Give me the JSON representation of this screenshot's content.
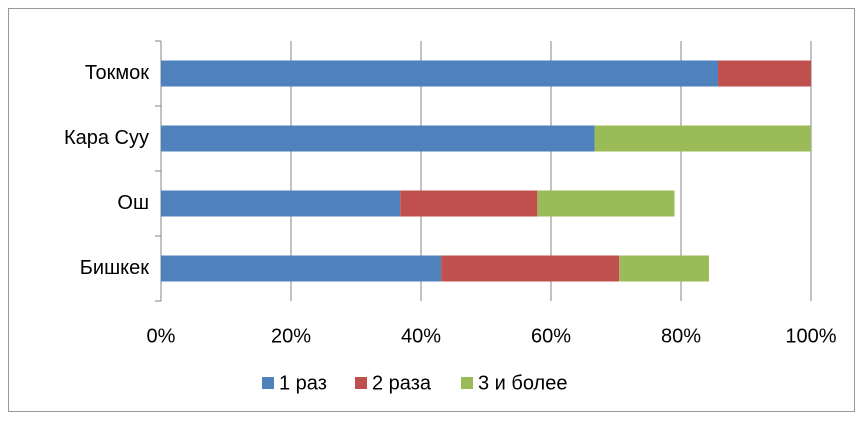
{
  "chart_data": {
    "type": "stacked-barh",
    "categories": [
      "Токмок",
      "Кара Суу",
      "Ош",
      "Бишкек"
    ],
    "series": [
      {
        "name": "1 раз",
        "color": "#4f81bd",
        "values": [
          85.7,
          66.7,
          36.8,
          43.1
        ]
      },
      {
        "name": "2 раза",
        "color": "#c0504d",
        "values": [
          14.3,
          0,
          21.1,
          27.4
        ]
      },
      {
        "name": "3 и более",
        "color": "#9bbb59",
        "values": [
          0,
          33.3,
          21.1,
          13.8
        ]
      }
    ],
    "xlim": [
      0,
      100
    ],
    "xticks": [
      {
        "value": 0,
        "label": "0%"
      },
      {
        "value": 20,
        "label": "20%"
      },
      {
        "value": 40,
        "label": "40%"
      },
      {
        "value": 60,
        "label": "60%"
      },
      {
        "value": 80,
        "label": "80%"
      },
      {
        "value": 100,
        "label": "100%"
      }
    ],
    "grid": true,
    "legend": "bottom"
  }
}
